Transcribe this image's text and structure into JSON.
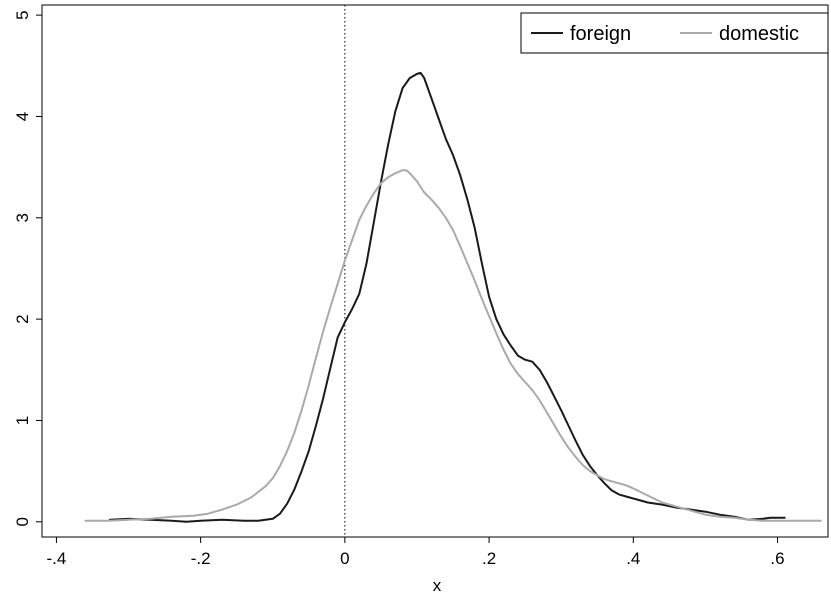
{
  "chart_data": {
    "type": "line",
    "title": "",
    "xlabel": "x",
    "ylabel": "",
    "xlim": [
      -0.42,
      0.67
    ],
    "ylim": [
      -0.15,
      5.1
    ],
    "x_ticks": [
      -0.4,
      -0.2,
      0,
      0.2,
      0.4,
      0.6
    ],
    "x_tick_labels": [
      "-.4",
      "-.2",
      "0",
      ".2",
      ".4",
      ".6"
    ],
    "y_ticks": [
      0,
      1,
      2,
      3,
      4,
      5
    ],
    "y_tick_labels": [
      "0",
      "1",
      "2",
      "3",
      "4",
      "5"
    ],
    "reference_line": {
      "x": 0,
      "style": "dotted"
    },
    "grid": false,
    "legend_position": "top-right",
    "series": [
      {
        "name": "foreign",
        "color": "#1a1a1a",
        "points": [
          [
            -0.326,
            0.02
          ],
          [
            -0.3,
            0.03
          ],
          [
            -0.27,
            0.02
          ],
          [
            -0.24,
            0.01
          ],
          [
            -0.22,
            0.0
          ],
          [
            -0.2,
            0.01
          ],
          [
            -0.17,
            0.02
          ],
          [
            -0.14,
            0.01
          ],
          [
            -0.12,
            0.01
          ],
          [
            -0.1,
            0.03
          ],
          [
            -0.09,
            0.08
          ],
          [
            -0.08,
            0.18
          ],
          [
            -0.07,
            0.32
          ],
          [
            -0.06,
            0.5
          ],
          [
            -0.05,
            0.7
          ],
          [
            -0.04,
            0.95
          ],
          [
            -0.03,
            1.22
          ],
          [
            -0.02,
            1.52
          ],
          [
            -0.01,
            1.82
          ],
          [
            0.0,
            1.97
          ],
          [
            0.01,
            2.1
          ],
          [
            0.02,
            2.25
          ],
          [
            0.03,
            2.55
          ],
          [
            0.04,
            2.95
          ],
          [
            0.05,
            3.35
          ],
          [
            0.06,
            3.72
          ],
          [
            0.07,
            4.05
          ],
          [
            0.08,
            4.28
          ],
          [
            0.09,
            4.38
          ],
          [
            0.1,
            4.42
          ],
          [
            0.105,
            4.43
          ],
          [
            0.11,
            4.38
          ],
          [
            0.12,
            4.18
          ],
          [
            0.13,
            3.98
          ],
          [
            0.14,
            3.78
          ],
          [
            0.15,
            3.62
          ],
          [
            0.16,
            3.42
          ],
          [
            0.17,
            3.18
          ],
          [
            0.18,
            2.9
          ],
          [
            0.19,
            2.55
          ],
          [
            0.2,
            2.22
          ],
          [
            0.21,
            2.0
          ],
          [
            0.22,
            1.85
          ],
          [
            0.23,
            1.74
          ],
          [
            0.24,
            1.64
          ],
          [
            0.25,
            1.6
          ],
          [
            0.26,
            1.58
          ],
          [
            0.27,
            1.5
          ],
          [
            0.28,
            1.38
          ],
          [
            0.29,
            1.24
          ],
          [
            0.3,
            1.1
          ],
          [
            0.31,
            0.95
          ],
          [
            0.32,
            0.8
          ],
          [
            0.33,
            0.66
          ],
          [
            0.34,
            0.55
          ],
          [
            0.35,
            0.46
          ],
          [
            0.36,
            0.38
          ],
          [
            0.37,
            0.31
          ],
          [
            0.38,
            0.27
          ],
          [
            0.39,
            0.25
          ],
          [
            0.4,
            0.23
          ],
          [
            0.42,
            0.19
          ],
          [
            0.44,
            0.17
          ],
          [
            0.46,
            0.14
          ],
          [
            0.48,
            0.12
          ],
          [
            0.5,
            0.1
          ],
          [
            0.52,
            0.07
          ],
          [
            0.54,
            0.05
          ],
          [
            0.56,
            0.02
          ],
          [
            0.58,
            0.03
          ],
          [
            0.59,
            0.04
          ],
          [
            0.61,
            0.04
          ]
        ]
      },
      {
        "name": "domestic",
        "color": "#aaaaaa",
        "points": [
          [
            -0.36,
            0.01
          ],
          [
            -0.33,
            0.01
          ],
          [
            -0.3,
            0.02
          ],
          [
            -0.27,
            0.03
          ],
          [
            -0.24,
            0.05
          ],
          [
            -0.21,
            0.06
          ],
          [
            -0.19,
            0.08
          ],
          [
            -0.17,
            0.12
          ],
          [
            -0.15,
            0.17
          ],
          [
            -0.13,
            0.24
          ],
          [
            -0.11,
            0.35
          ],
          [
            -0.1,
            0.43
          ],
          [
            -0.09,
            0.55
          ],
          [
            -0.08,
            0.7
          ],
          [
            -0.07,
            0.88
          ],
          [
            -0.06,
            1.1
          ],
          [
            -0.05,
            1.35
          ],
          [
            -0.04,
            1.62
          ],
          [
            -0.03,
            1.88
          ],
          [
            -0.02,
            2.12
          ],
          [
            -0.01,
            2.35
          ],
          [
            0.0,
            2.58
          ],
          [
            0.01,
            2.78
          ],
          [
            0.02,
            2.98
          ],
          [
            0.03,
            3.12
          ],
          [
            0.04,
            3.24
          ],
          [
            0.05,
            3.34
          ],
          [
            0.06,
            3.4
          ],
          [
            0.07,
            3.44
          ],
          [
            0.08,
            3.47
          ],
          [
            0.085,
            3.47
          ],
          [
            0.09,
            3.44
          ],
          [
            0.1,
            3.36
          ],
          [
            0.11,
            3.25
          ],
          [
            0.12,
            3.18
          ],
          [
            0.13,
            3.1
          ],
          [
            0.14,
            3.0
          ],
          [
            0.15,
            2.88
          ],
          [
            0.16,
            2.72
          ],
          [
            0.17,
            2.55
          ],
          [
            0.18,
            2.38
          ],
          [
            0.19,
            2.2
          ],
          [
            0.2,
            2.03
          ],
          [
            0.21,
            1.86
          ],
          [
            0.22,
            1.7
          ],
          [
            0.23,
            1.56
          ],
          [
            0.24,
            1.46
          ],
          [
            0.25,
            1.38
          ],
          [
            0.26,
            1.3
          ],
          [
            0.27,
            1.2
          ],
          [
            0.28,
            1.08
          ],
          [
            0.29,
            0.96
          ],
          [
            0.3,
            0.84
          ],
          [
            0.31,
            0.73
          ],
          [
            0.32,
            0.64
          ],
          [
            0.33,
            0.56
          ],
          [
            0.34,
            0.5
          ],
          [
            0.35,
            0.46
          ],
          [
            0.36,
            0.42
          ],
          [
            0.37,
            0.4
          ],
          [
            0.38,
            0.38
          ],
          [
            0.39,
            0.36
          ],
          [
            0.4,
            0.33
          ],
          [
            0.42,
            0.26
          ],
          [
            0.44,
            0.19
          ],
          [
            0.46,
            0.15
          ],
          [
            0.48,
            0.11
          ],
          [
            0.5,
            0.07
          ],
          [
            0.52,
            0.05
          ],
          [
            0.54,
            0.04
          ],
          [
            0.56,
            0.02
          ],
          [
            0.58,
            0.01
          ],
          [
            0.6,
            0.01
          ],
          [
            0.63,
            0.01
          ],
          [
            0.66,
            0.01
          ]
        ]
      }
    ]
  }
}
